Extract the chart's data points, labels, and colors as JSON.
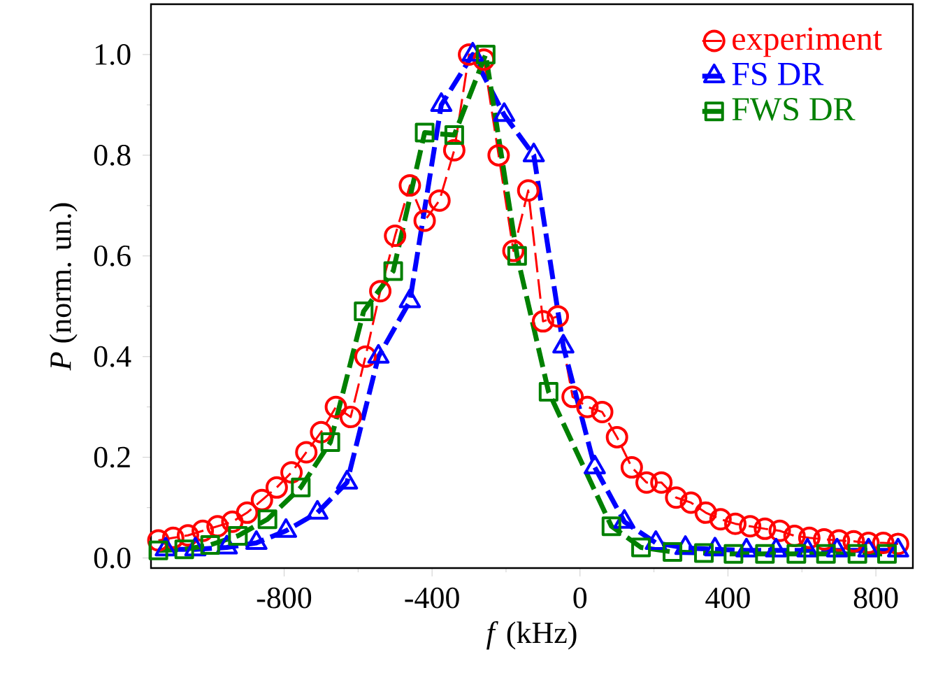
{
  "chart_data": {
    "type": "line",
    "xlabel": "*f* (kHz)",
    "ylabel": "*P* (norm. un.)",
    "xlim": [
      -1160,
      900
    ],
    "ylim": [
      -0.02,
      1.1
    ],
    "xticks": [
      -800,
      -400,
      0,
      400,
      800
    ],
    "yticks": [
      {
        "value": 0,
        "label": "0.0"
      },
      {
        "value": 0.2,
        "label": "0.2"
      },
      {
        "value": 0.4,
        "label": "0.4"
      },
      {
        "value": 0.6,
        "label": "0.6"
      },
      {
        "value": 0.8,
        "label": "0.8"
      },
      {
        "value": 1,
        "label": "1.0"
      }
    ],
    "grid": false,
    "legend": "top right",
    "series": [
      {
        "name": "experiment",
        "color": "#ff0000",
        "marker": "circle",
        "line_style": "dashed",
        "x": [
          -1140,
          -1100,
          -1060,
          -1020,
          -980,
          -940,
          -900,
          -860,
          -820,
          -780,
          -740,
          -700,
          -660,
          -620,
          -580,
          -540,
          -500,
          -460,
          -420,
          -380,
          -340,
          -300,
          -260,
          -220,
          -180,
          -140,
          -100,
          -60,
          -20,
          20,
          60,
          100,
          140,
          180,
          220,
          260,
          300,
          340,
          380,
          420,
          460,
          500,
          540,
          580,
          620,
          660,
          700,
          740,
          780,
          820,
          860
        ],
        "values": [
          0.035,
          0.04,
          0.045,
          0.054,
          0.063,
          0.072,
          0.09,
          0.115,
          0.14,
          0.17,
          0.21,
          0.25,
          0.3,
          0.28,
          0.4,
          0.53,
          0.64,
          0.74,
          0.67,
          0.71,
          0.81,
          1.0,
          0.99,
          0.8,
          0.61,
          0.73,
          0.47,
          0.48,
          0.32,
          0.3,
          0.29,
          0.24,
          0.18,
          0.15,
          0.15,
          0.12,
          0.11,
          0.09,
          0.077,
          0.068,
          0.063,
          0.058,
          0.054,
          0.044,
          0.04,
          0.037,
          0.035,
          0.033,
          0.03,
          0.03,
          0.028
        ]
      },
      {
        "name": "FS DR",
        "color": "#0000ff",
        "marker": "triangle",
        "line_style": "dashed",
        "x": [
          -1120,
          -1040,
          -955,
          -875,
          -795,
          -710,
          -630,
          -545,
          -460,
          -375,
          -290,
          -205,
          -125,
          -45,
          40,
          120,
          205,
          285,
          365,
          450,
          530,
          615,
          695,
          780,
          860
        ],
        "values": [
          0.017,
          0.017,
          0.021,
          0.03,
          0.054,
          0.09,
          0.15,
          0.4,
          0.51,
          0.9,
          1.0,
          0.88,
          0.8,
          0.42,
          0.18,
          0.072,
          0.03,
          0.02,
          0.017,
          0.015,
          0.015,
          0.015,
          0.015,
          0.015,
          0.015
        ]
      },
      {
        "name": "FWS DR",
        "color": "#008000",
        "marker": "square",
        "line_style": "dashed",
        "x": [
          -1140,
          -1070,
          -1000,
          -925,
          -845,
          -755,
          -675,
          -585,
          -505,
          -420,
          -340,
          -255,
          -170,
          -85,
          85,
          165,
          250,
          335,
          415,
          500,
          585,
          665,
          750,
          830
        ],
        "values": [
          0.015,
          0.017,
          0.026,
          0.044,
          0.077,
          0.14,
          0.23,
          0.49,
          0.57,
          0.845,
          0.84,
          1.0,
          0.6,
          0.33,
          0.063,
          0.021,
          0.012,
          0.01,
          0.008,
          0.008,
          0.008,
          0.008,
          0.008,
          0.008
        ]
      }
    ]
  }
}
